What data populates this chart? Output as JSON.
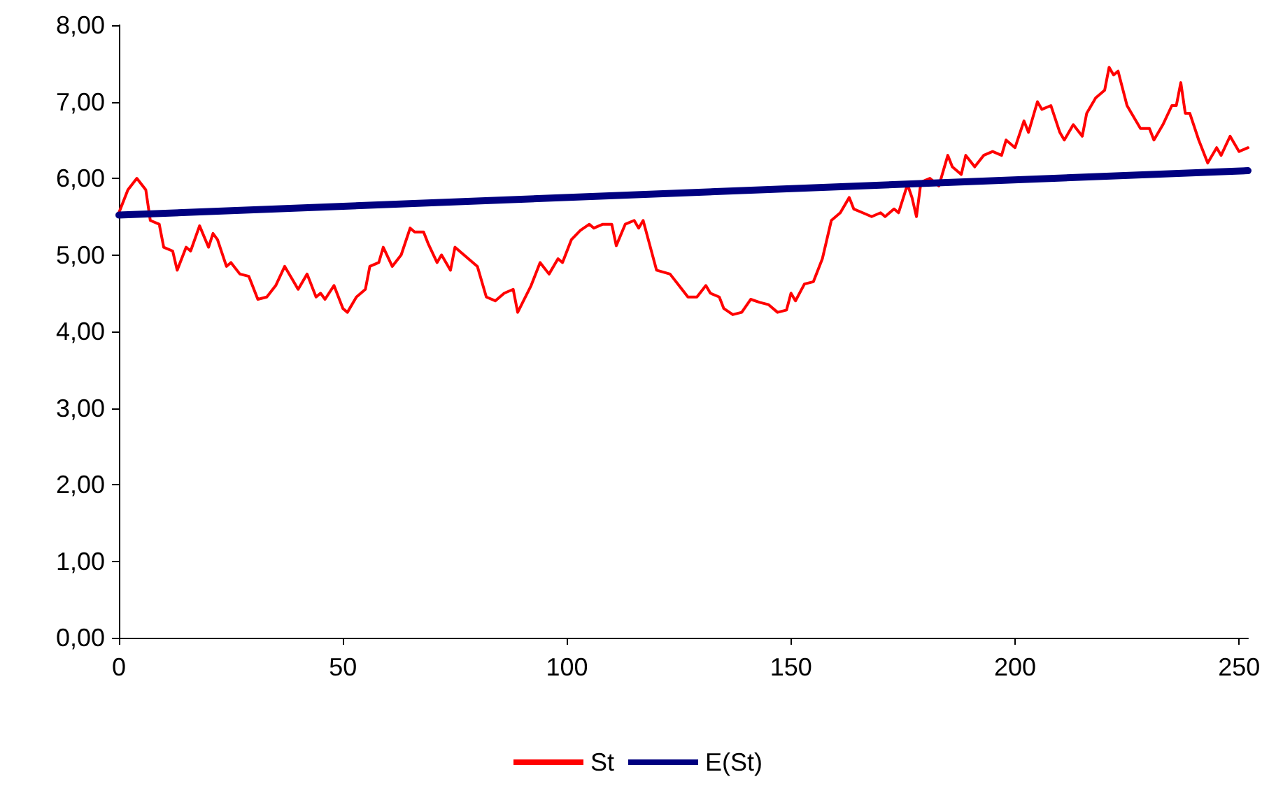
{
  "chart_data": {
    "type": "line",
    "xlim": [
      0,
      252
    ],
    "xticks": [
      0,
      50,
      100,
      150,
      200,
      250
    ],
    "ylim": [
      0,
      8
    ],
    "yticks": [
      {
        "value": 0,
        "label": "0,00"
      },
      {
        "value": 1,
        "label": "1,00"
      },
      {
        "value": 2,
        "label": "2,00"
      },
      {
        "value": 3,
        "label": "3,00"
      },
      {
        "value": 4,
        "label": "4,00"
      },
      {
        "value": 5,
        "label": "5,00"
      },
      {
        "value": 6,
        "label": "6,00"
      },
      {
        "value": 7,
        "label": "7,00"
      },
      {
        "value": 8,
        "label": "8,00"
      }
    ],
    "grid": false,
    "legend": "bottom",
    "marker": "none",
    "line_style": "solid",
    "series": [
      {
        "name": "St",
        "color": "#ff0000",
        "x": [
          0,
          2,
          4,
          6,
          7,
          9,
          10,
          12,
          13,
          15,
          16,
          18,
          20,
          21,
          22,
          24,
          25,
          27,
          29,
          31,
          33,
          35,
          37,
          39,
          40,
          42,
          44,
          45,
          46,
          48,
          50,
          51,
          53,
          55,
          56,
          58,
          59,
          61,
          63,
          65,
          66,
          68,
          69,
          71,
          72,
          74,
          75,
          77,
          80,
          82,
          84,
          86,
          88,
          89,
          92,
          94,
          96,
          98,
          99,
          101,
          103,
          105,
          106,
          108,
          110,
          111,
          113,
          115,
          116,
          117,
          120,
          123,
          125,
          127,
          129,
          131,
          132,
          134,
          135,
          137,
          139,
          141,
          143,
          145,
          147,
          149,
          150,
          151,
          153,
          155,
          157,
          159,
          161,
          163,
          164,
          166,
          168,
          170,
          171,
          173,
          174,
          176,
          177,
          178,
          179,
          181,
          183,
          185,
          186,
          188,
          189,
          191,
          193,
          195,
          197,
          198,
          200,
          202,
          203,
          205,
          206,
          208,
          210,
          211,
          213,
          215,
          216,
          218,
          220,
          221,
          222,
          223,
          225,
          226,
          228,
          230,
          231,
          233,
          235,
          236,
          237,
          238,
          239,
          241,
          243,
          245,
          246,
          248,
          250,
          252
        ],
        "values": [
          5.55,
          5.85,
          6.0,
          5.85,
          5.45,
          5.4,
          5.1,
          5.05,
          4.8,
          5.1,
          5.05,
          5.38,
          5.1,
          5.28,
          5.2,
          4.85,
          4.9,
          4.75,
          4.72,
          4.42,
          4.45,
          4.6,
          4.85,
          4.65,
          4.55,
          4.75,
          4.45,
          4.5,
          4.42,
          4.6,
          4.3,
          4.25,
          4.45,
          4.55,
          4.85,
          4.9,
          5.1,
          4.85,
          5.0,
          5.35,
          5.3,
          5.3,
          5.15,
          4.9,
          5.0,
          4.8,
          5.1,
          5.0,
          4.85,
          4.45,
          4.4,
          4.5,
          4.55,
          4.25,
          4.6,
          4.9,
          4.75,
          4.95,
          4.9,
          5.2,
          5.32,
          5.4,
          5.35,
          5.4,
          5.4,
          5.12,
          5.4,
          5.45,
          5.35,
          5.45,
          4.8,
          4.75,
          4.6,
          4.45,
          4.45,
          4.6,
          4.5,
          4.45,
          4.3,
          4.22,
          4.25,
          4.42,
          4.38,
          4.35,
          4.25,
          4.28,
          4.5,
          4.4,
          4.62,
          4.65,
          4.95,
          5.45,
          5.55,
          5.75,
          5.6,
          5.55,
          5.5,
          5.55,
          5.5,
          5.6,
          5.55,
          5.92,
          5.75,
          5.5,
          5.95,
          6.0,
          5.9,
          6.3,
          6.15,
          6.05,
          6.3,
          6.15,
          6.3,
          6.35,
          6.3,
          6.5,
          6.4,
          6.75,
          6.6,
          7.0,
          6.9,
          6.95,
          6.6,
          6.5,
          6.7,
          6.55,
          6.85,
          7.05,
          7.15,
          7.45,
          7.35,
          7.4,
          6.95,
          6.85,
          6.65,
          6.65,
          6.5,
          6.7,
          6.95,
          6.95,
          7.25,
          6.85,
          6.85,
          6.5,
          6.2,
          6.4,
          6.3,
          6.55,
          6.35,
          6.4
        ]
      },
      {
        "name": "E(St)",
        "color": "#000080",
        "x": [
          0,
          252
        ],
        "values": [
          5.52,
          6.1
        ]
      }
    ]
  }
}
